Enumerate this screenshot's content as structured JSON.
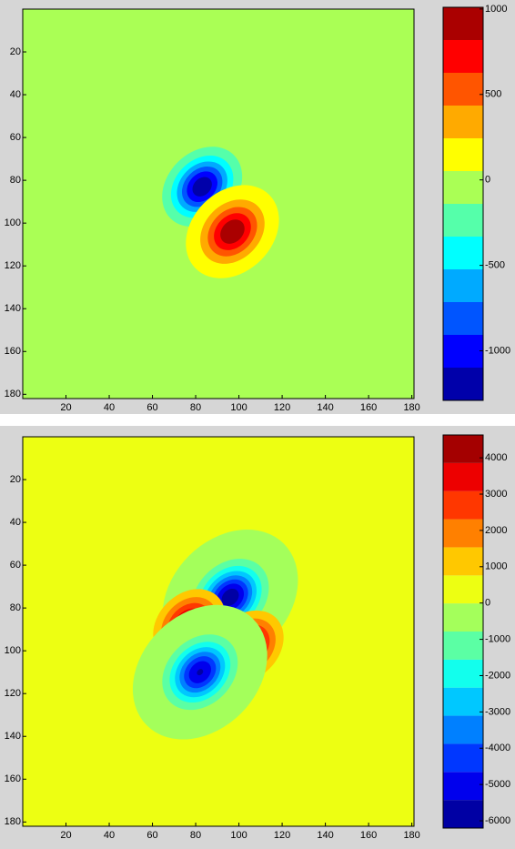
{
  "chart_data": [
    {
      "type": "contourf",
      "colormap": "jet",
      "levels": 12,
      "xlim": [
        0,
        181
      ],
      "ylim": [
        0,
        182
      ],
      "xticks": [
        20,
        40,
        60,
        80,
        100,
        120,
        140,
        160,
        180
      ],
      "yticks": [
        20,
        40,
        60,
        80,
        100,
        120,
        140,
        160,
        180
      ],
      "clim": [
        -1290,
        1010
      ],
      "cticks": [
        1000,
        500,
        0,
        -500,
        -1000
      ],
      "x": [
        83,
        97
      ],
      "y": [
        83,
        104
      ],
      "values": [
        -1250,
        1000
      ]
    },
    {
      "type": "contourf",
      "colormap": "jet",
      "levels": 14,
      "xlim": [
        0,
        181
      ],
      "ylim": [
        0,
        182
      ],
      "xticks": [
        20,
        40,
        60,
        80,
        100,
        120,
        140,
        160,
        180
      ],
      "yticks": [
        20,
        40,
        60,
        80,
        100,
        120,
        140,
        160,
        180
      ],
      "clim": [
        -6200,
        4630
      ],
      "cticks": [
        4000,
        3000,
        2000,
        1000,
        0,
        -1000,
        -2000,
        -3000,
        -4000,
        -5000,
        -6000
      ],
      "x": [
        96,
        77,
        104,
        82
      ],
      "y": [
        75,
        88,
        98,
        110
      ],
      "values": [
        -6000,
        4500,
        4500,
        -5500
      ]
    }
  ]
}
